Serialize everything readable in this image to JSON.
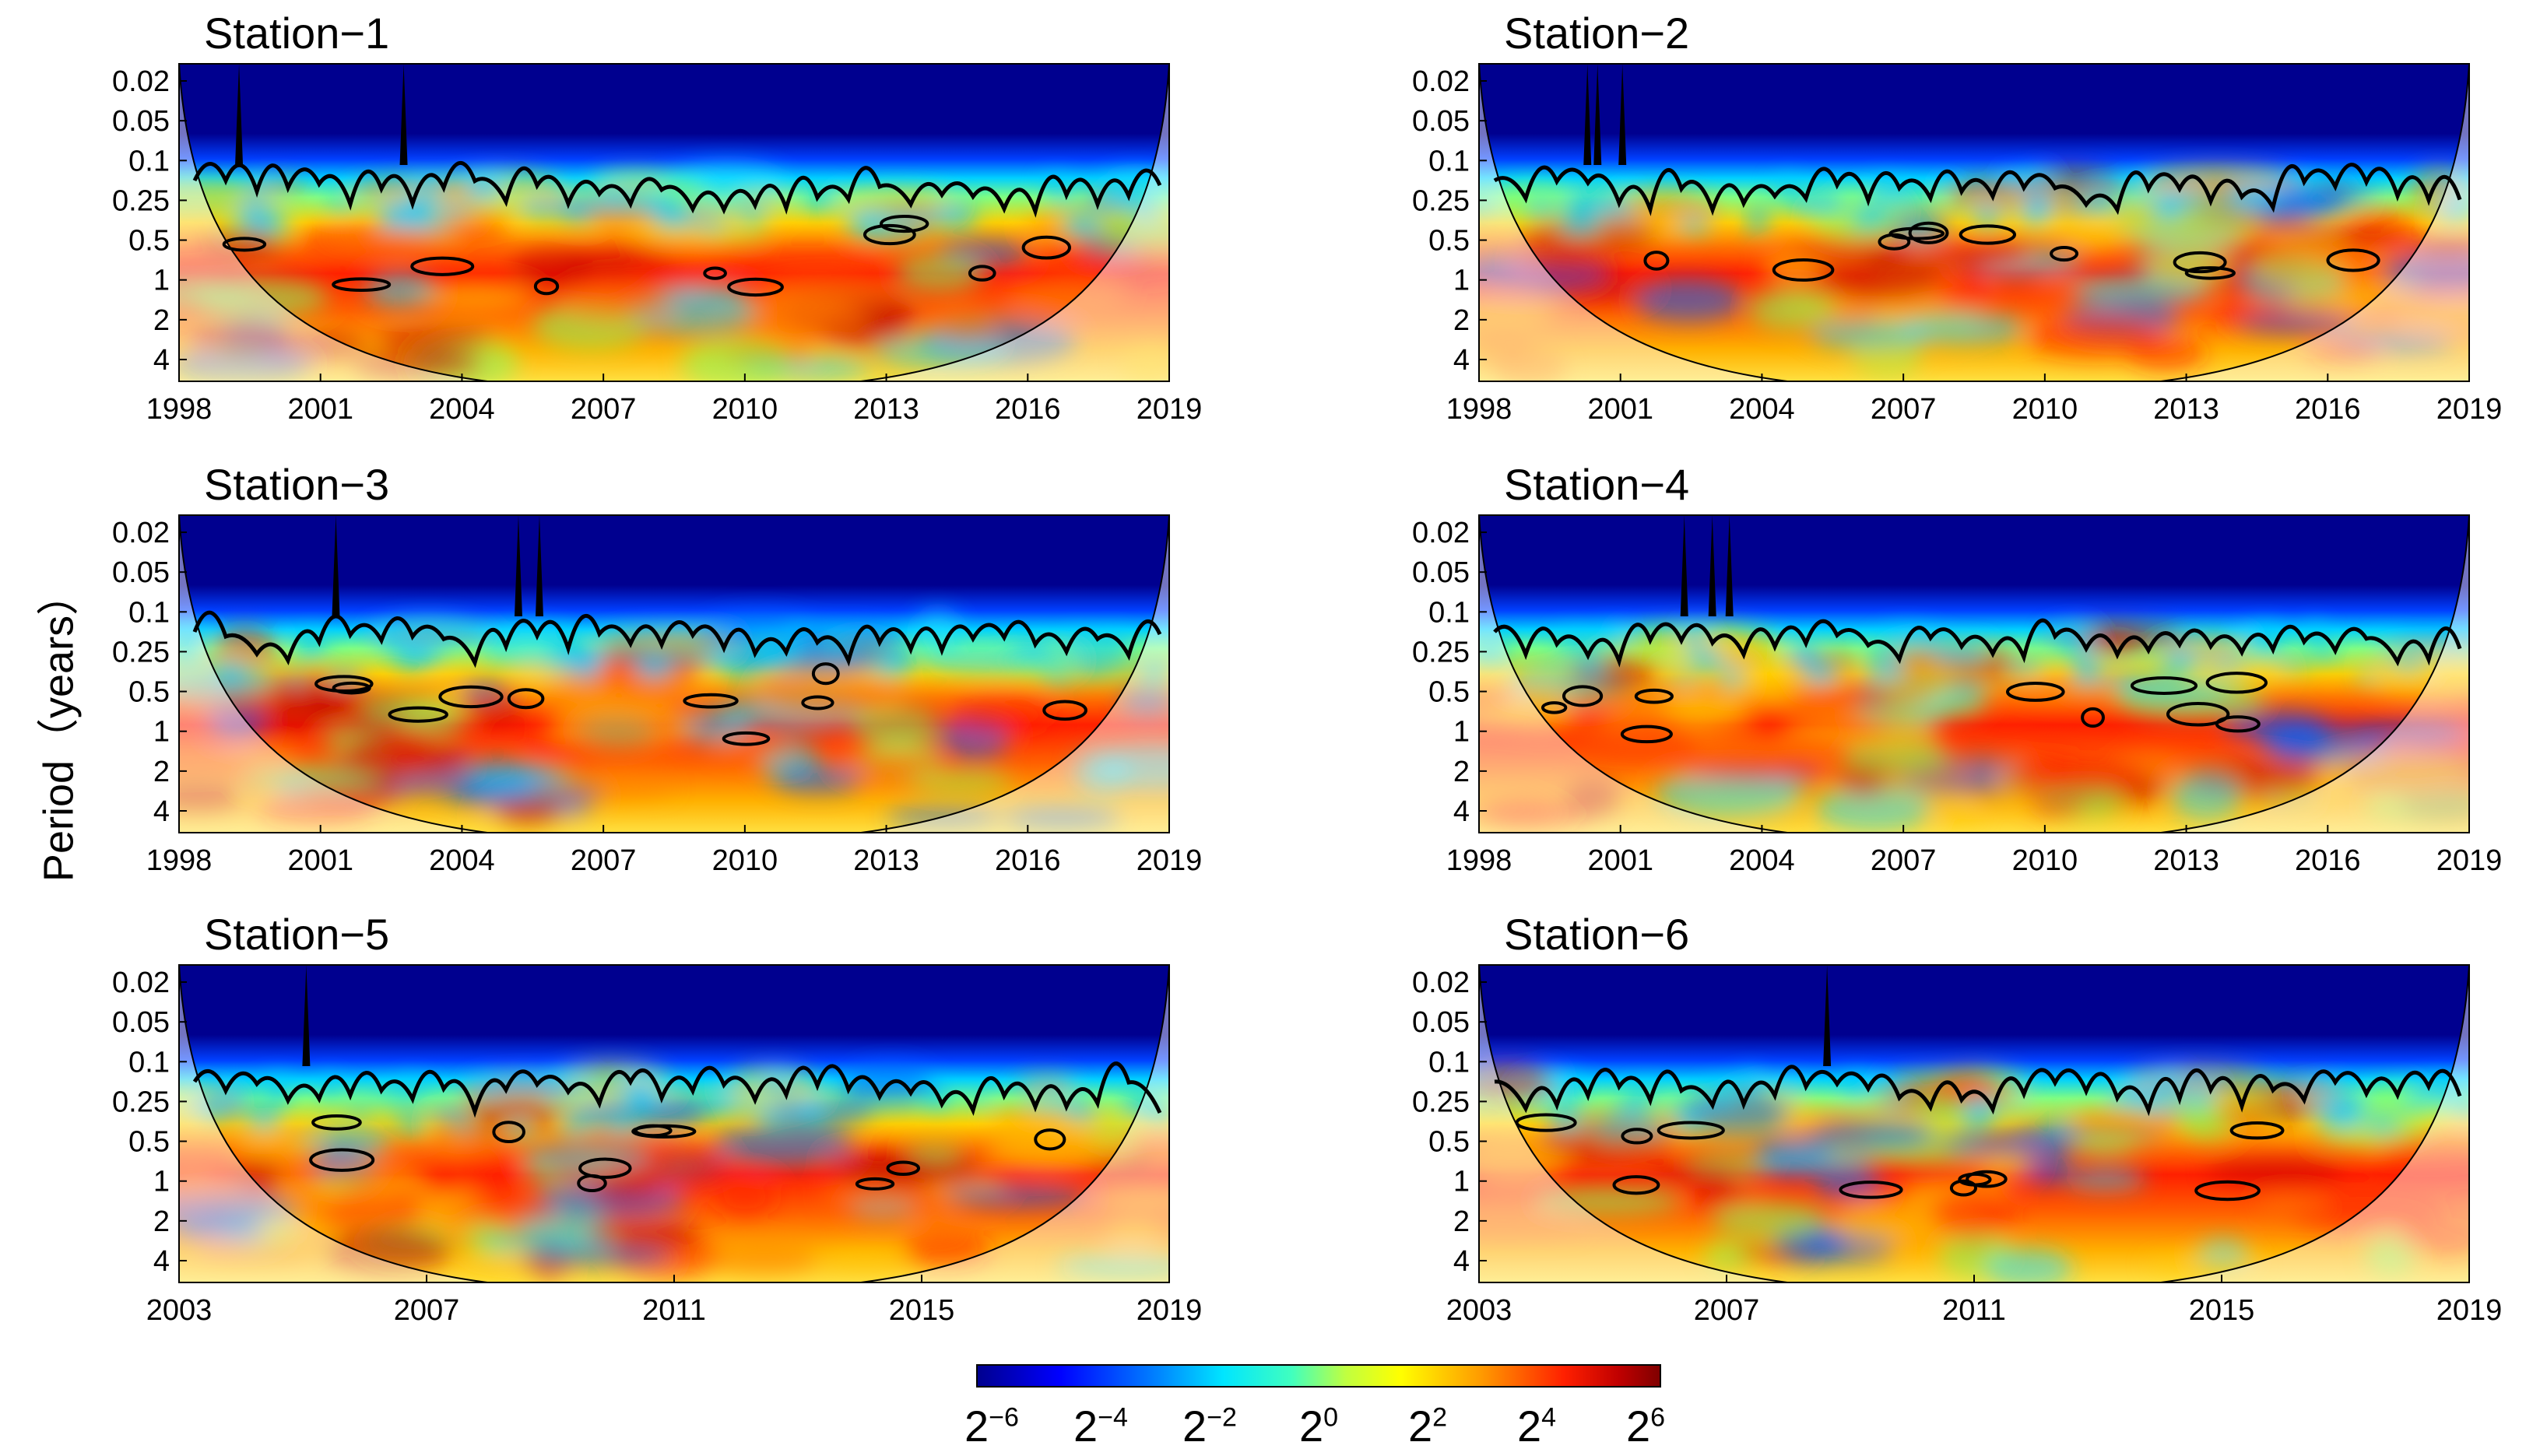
{
  "y_axis_label": "Period（years）",
  "colorbar": {
    "labels": [
      {
        "base": "2",
        "exp": "−6"
      },
      {
        "base": "2",
        "exp": "−4"
      },
      {
        "base": "2",
        "exp": "−2"
      },
      {
        "base": "2",
        "exp": "0"
      },
      {
        "base": "2",
        "exp": "2"
      },
      {
        "base": "2",
        "exp": "4"
      },
      {
        "base": "2",
        "exp": "6"
      }
    ]
  },
  "chart_data": [
    {
      "type": "heatmap",
      "title": "Station−1",
      "xlabel": "",
      "ylabel": "Period (years)",
      "x_ticks": [
        "1998",
        "2001",
        "2004",
        "2007",
        "2010",
        "2013",
        "2016",
        "2019"
      ],
      "xlim": [
        1998,
        2019
      ],
      "y_ticks": [
        "0.02",
        "0.05",
        "0.1",
        "0.25",
        "0.5",
        "1",
        "2",
        "4"
      ]
    },
    {
      "type": "heatmap",
      "title": "Station−2",
      "xlabel": "",
      "ylabel": "Period (years)",
      "x_ticks": [
        "1998",
        "2001",
        "2004",
        "2007",
        "2010",
        "2013",
        "2016",
        "2019"
      ],
      "xlim": [
        1998,
        2019
      ],
      "y_ticks": [
        "0.02",
        "0.05",
        "0.1",
        "0.25",
        "0.5",
        "1",
        "2",
        "4"
      ]
    },
    {
      "type": "heatmap",
      "title": "Station−3",
      "xlabel": "",
      "ylabel": "Period (years)",
      "x_ticks": [
        "1998",
        "2001",
        "2004",
        "2007",
        "2010",
        "2013",
        "2016",
        "2019"
      ],
      "xlim": [
        1998,
        2019
      ],
      "y_ticks": [
        "0.02",
        "0.05",
        "0.1",
        "0.25",
        "0.5",
        "1",
        "2",
        "4"
      ]
    },
    {
      "type": "heatmap",
      "title": "Station−4",
      "xlabel": "",
      "ylabel": "Period (years)",
      "x_ticks": [
        "1998",
        "2001",
        "2004",
        "2007",
        "2010",
        "2013",
        "2016",
        "2019"
      ],
      "xlim": [
        1998,
        2019
      ],
      "y_ticks": [
        "0.02",
        "0.05",
        "0.1",
        "0.25",
        "0.5",
        "1",
        "2",
        "4"
      ]
    },
    {
      "type": "heatmap",
      "title": "Station−5",
      "xlabel": "",
      "ylabel": "Period (years)",
      "x_ticks": [
        "2003",
        "2007",
        "2011",
        "2015",
        "2019"
      ],
      "xlim": [
        2003,
        2019
      ],
      "y_ticks": [
        "0.02",
        "0.05",
        "0.1",
        "0.25",
        "0.5",
        "1",
        "2",
        "4"
      ]
    },
    {
      "type": "heatmap",
      "title": "Station−6",
      "xlabel": "",
      "ylabel": "Period (years)",
      "x_ticks": [
        "2003",
        "2007",
        "2011",
        "2015",
        "2019"
      ],
      "xlim": [
        2003,
        2019
      ],
      "y_ticks": [
        "0.02",
        "0.05",
        "0.1",
        "0.25",
        "0.5",
        "1",
        "2",
        "4"
      ]
    }
  ]
}
